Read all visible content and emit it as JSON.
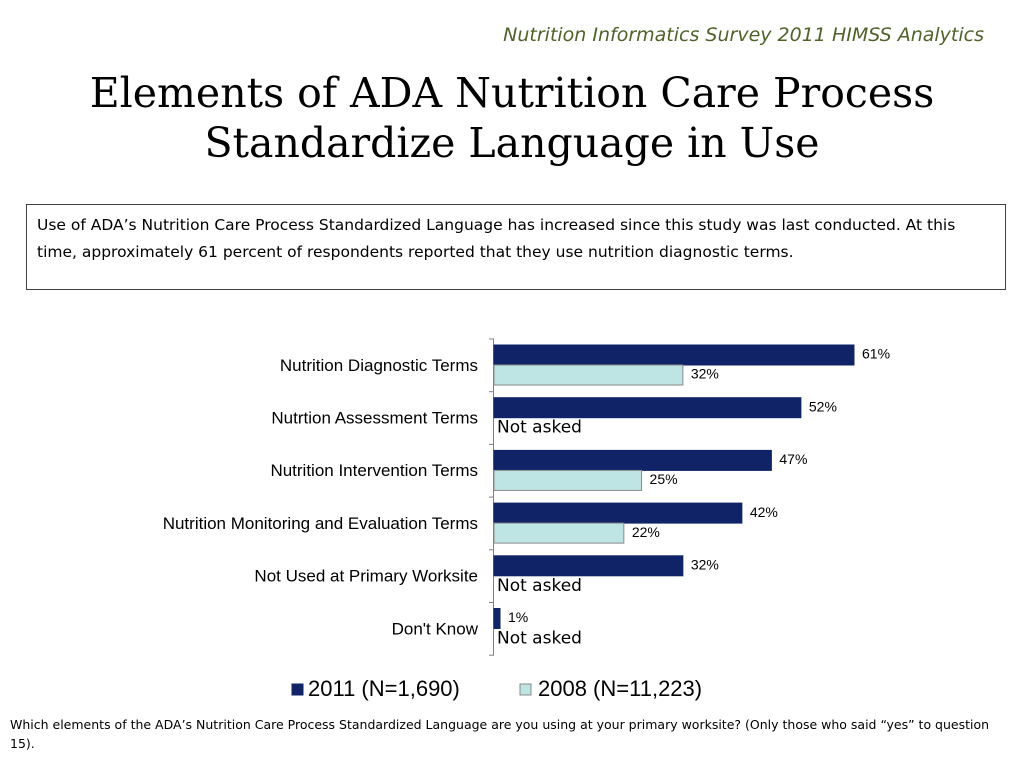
{
  "header": {
    "source": "Nutrition Informatics Survey 2011 HIMSS Analytics",
    "title_line1": "Elements of ADA Nutrition Care Process",
    "title_line2": "Standardize Language in Use"
  },
  "callout": {
    "text": "Use of ADA’s Nutrition Care Process Standardized Language has increased since this study was last conducted.  At this time, approximately 61 percent of respondents reported that they use nutrition diagnostic terms."
  },
  "footnote": {
    "text": "Which elements of the ADA’s Nutrition Care Process Standardized Language are you using at your primary worksite? (Only those who said “yes” to question 15)."
  },
  "chart_data": {
    "type": "bar",
    "orientation": "horizontal",
    "categories": [
      "Nutrition Diagnostic Terms",
      "Nutrtion Assessment Terms",
      "Nutrition Intervention Terms",
      "Nutrition Monitoring and Evaluation Terms",
      "Not Used at Primary Worksite",
      "Don't Know"
    ],
    "series": [
      {
        "name": "2011 (N=1,690)",
        "values": [
          61,
          52,
          47,
          42,
          32,
          1
        ],
        "color": "#0f2366"
      },
      {
        "name": "2008 (N=11,223)",
        "values": [
          32,
          null,
          25,
          22,
          null,
          null
        ],
        "color": "#bfe4e4"
      }
    ],
    "missing_label": "Not asked",
    "value_suffix": "%",
    "xlim": [
      0,
      70
    ],
    "grid": false,
    "legend": "bottom"
  }
}
